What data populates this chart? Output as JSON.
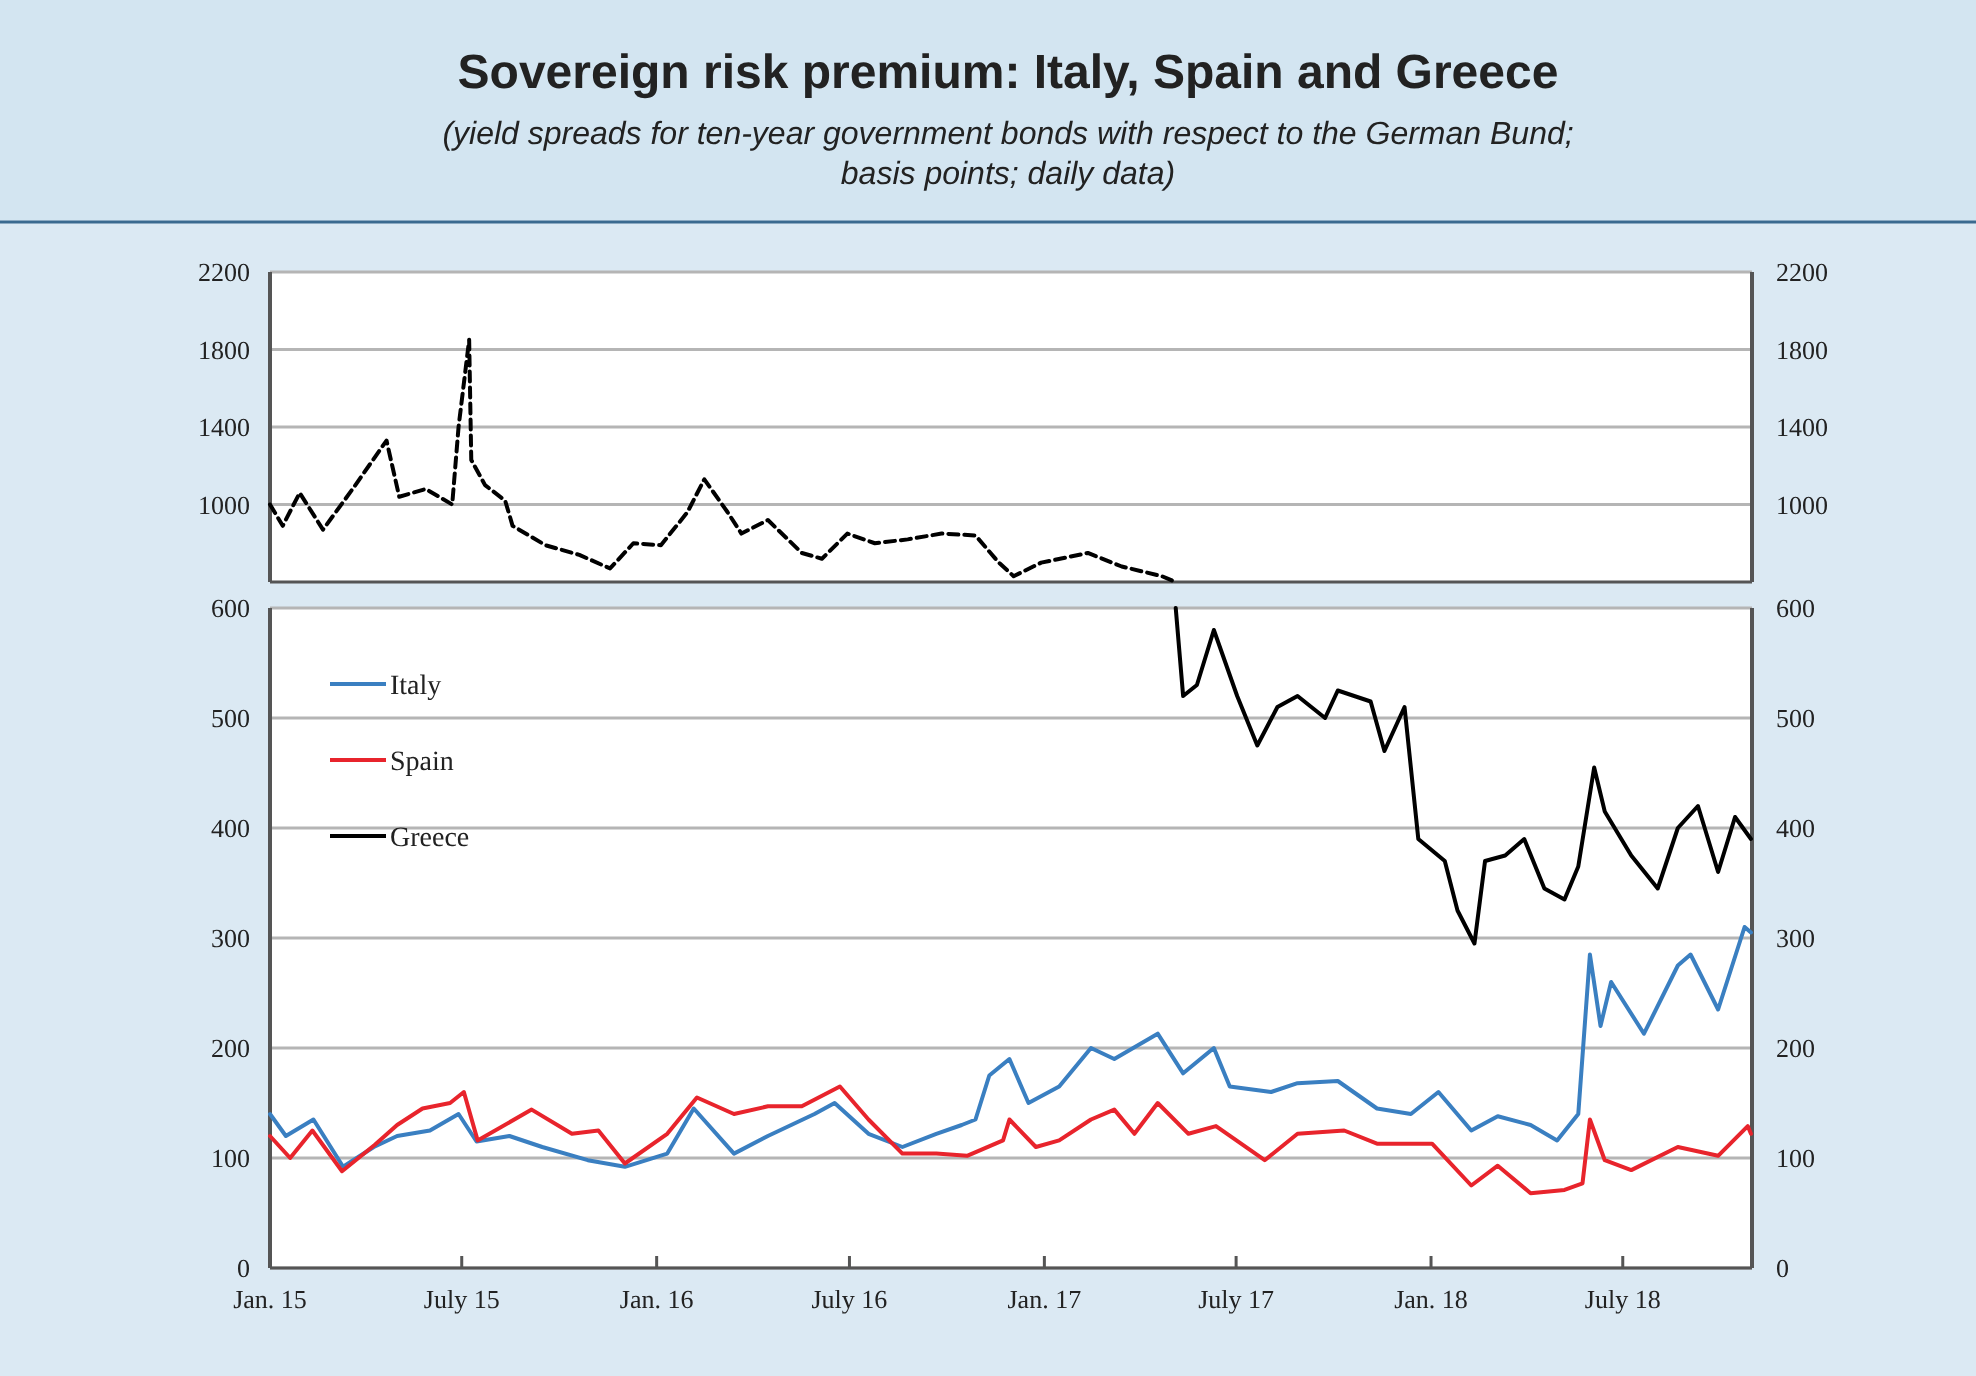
{
  "chart_data": [
    {
      "type": "line",
      "title": "Sovereign risk premium: Italy, Spain and Greece",
      "subtitle": "(yield spreads for ten-year government bonds with respect to the German Bund; basis points; daily data)",
      "xlim": [
        "2015-01-01",
        "2018-10-31"
      ],
      "ylim": [
        600,
        2200
      ],
      "yticks": [
        1000,
        1400,
        1800,
        2200
      ],
      "y2lim": [
        600,
        2200
      ],
      "y2ticks": [
        1000,
        1400,
        1800,
        2200
      ],
      "grid": "y",
      "tick_labels": "y",
      "line_style": "dashed",
      "series": [
        {
          "color": "#000000",
          "x": [
            "2015-01-01",
            "2015-01-13",
            "2015-01-29",
            "2015-02-20",
            "2015-03-20",
            "2015-04-21",
            "2015-05-03",
            "2015-05-28",
            "2015-06-22",
            "2015-06-28",
            "2015-07-08",
            "2015-07-10",
            "2015-07-23",
            "2015-08-11",
            "2015-08-18",
            "2015-09-18",
            "2015-10-20",
            "2015-11-18",
            "2015-12-10",
            "2016-01-05",
            "2016-01-30",
            "2016-02-15",
            "2016-03-08",
            "2016-03-21",
            "2016-04-15",
            "2016-05-17",
            "2016-06-05",
            "2016-06-29",
            "2016-07-25",
            "2016-08-25",
            "2016-09-26",
            "2016-10-28",
            "2016-11-19",
            "2016-12-03",
            "2016-12-29",
            "2017-02-11",
            "2017-03-15",
            "2017-04-22",
            "2017-05-05"
          ],
          "values": [
            1000,
            890,
            1060,
            870,
            1080,
            1330,
            1040,
            1080,
            1000,
            1400,
            1850,
            1230,
            1100,
            1020,
            890,
            790,
            740,
            670,
            800,
            790,
            960,
            1130,
            960,
            850,
            920,
            750,
            720,
            850,
            800,
            820,
            850,
            840,
            700,
            630,
            700,
            750,
            680,
            630,
            600
          ]
        }
      ]
    },
    {
      "type": "line",
      "xlim": [
        "2015-01-01",
        "2018-10-31"
      ],
      "xticks": [
        {
          "value": "2015-01-01",
          "label": "Jan. 15"
        },
        {
          "value": "2015-07-01",
          "label": "July 15"
        },
        {
          "value": "2016-01-01",
          "label": "Jan. 16"
        },
        {
          "value": "2016-07-01",
          "label": "July 16"
        },
        {
          "value": "2017-01-01",
          "label": "Jan. 17"
        },
        {
          "value": "2017-07-01",
          "label": "July 17"
        },
        {
          "value": "2018-01-01",
          "label": "Jan. 18"
        },
        {
          "value": "2018-07-01",
          "label": "July 18"
        }
      ],
      "ylim": [
        0,
        600
      ],
      "yticks": [
        0,
        100,
        200,
        300,
        400,
        500,
        600
      ],
      "y2lim": [
        0,
        600
      ],
      "y2ticks": [
        0,
        100,
        200,
        300,
        400,
        500,
        600
      ],
      "grid": "y",
      "legend": "top left",
      "series": [
        {
          "name": "Italy",
          "color": "#3a7fc1",
          "x": [
            "2015-01-01",
            "2015-01-16",
            "2015-02-11",
            "2015-03-11",
            "2015-04-09",
            "2015-05-01",
            "2015-06-01",
            "2015-06-28",
            "2015-07-15",
            "2015-08-15",
            "2015-09-15",
            "2015-10-28",
            "2015-12-02",
            "2016-01-11",
            "2016-02-05",
            "2016-03-14",
            "2016-04-15",
            "2016-05-29",
            "2016-06-17",
            "2016-07-19",
            "2016-08-20",
            "2016-09-21",
            "2016-10-15",
            "2016-10-28",
            "2016-11-10",
            "2016-11-29",
            "2016-12-17",
            "2017-01-15",
            "2017-02-14",
            "2017-03-08",
            "2017-04-18",
            "2017-05-12",
            "2017-06-10",
            "2017-06-25",
            "2017-08-03",
            "2017-08-28",
            "2017-10-05",
            "2017-11-11",
            "2017-12-13",
            "2018-01-08",
            "2018-02-08",
            "2018-03-05",
            "2018-04-05",
            "2018-04-30",
            "2018-05-20",
            "2018-05-31",
            "2018-06-10",
            "2018-06-20",
            "2018-07-21",
            "2018-08-22",
            "2018-09-03",
            "2018-09-29",
            "2018-10-24",
            "2018-10-30"
          ],
          "values": [
            140,
            120,
            135,
            92,
            110,
            120,
            125,
            140,
            115,
            120,
            110,
            98,
            92,
            104,
            145,
            104,
            120,
            140,
            150,
            122,
            110,
            122,
            130,
            135,
            175,
            190,
            150,
            165,
            200,
            190,
            213,
            177,
            200,
            165,
            160,
            168,
            170,
            145,
            140,
            160,
            125,
            138,
            130,
            116,
            140,
            285,
            220,
            260,
            213,
            275,
            285,
            235,
            310,
            305
          ]
        },
        {
          "name": "Spain",
          "color": "#e8242c",
          "x": [
            "2015-01-01",
            "2015-01-20",
            "2015-02-10",
            "2015-03-10",
            "2015-04-10",
            "2015-05-01",
            "2015-05-25",
            "2015-06-20",
            "2015-07-03",
            "2015-07-16",
            "2015-09-05",
            "2015-10-13",
            "2015-11-07",
            "2015-12-02",
            "2016-01-11",
            "2016-02-08",
            "2016-03-14",
            "2016-04-15",
            "2016-05-17",
            "2016-06-22",
            "2016-07-19",
            "2016-08-20",
            "2016-09-21",
            "2016-10-20",
            "2016-11-23",
            "2016-11-29",
            "2016-12-24",
            "2017-01-15",
            "2017-02-14",
            "2017-03-08",
            "2017-03-27",
            "2017-04-18",
            "2017-05-17",
            "2017-06-12",
            "2017-07-28",
            "2017-08-28",
            "2017-10-11",
            "2017-11-11",
            "2018-01-02",
            "2018-02-08",
            "2018-03-05",
            "2018-04-05",
            "2018-05-07",
            "2018-05-24",
            "2018-05-31",
            "2018-06-14",
            "2018-07-09",
            "2018-08-22",
            "2018-09-29",
            "2018-10-27",
            "2018-10-30"
          ],
          "values": [
            120,
            100,
            125,
            88,
            112,
            130,
            145,
            150,
            160,
            116,
            144,
            122,
            125,
            95,
            122,
            155,
            140,
            147,
            147,
            165,
            135,
            104,
            104,
            102,
            116,
            135,
            110,
            116,
            135,
            144,
            122,
            150,
            122,
            129,
            98,
            122,
            125,
            113,
            113,
            75,
            93,
            68,
            71,
            77,
            135,
            98,
            89,
            110,
            102,
            129,
            122
          ]
        },
        {
          "name": "Greece",
          "color": "#000000",
          "x": [
            "2017-05-05",
            "2017-05-12",
            "2017-05-25",
            "2017-06-10",
            "2017-07-02",
            "2017-07-21",
            "2017-08-09",
            "2017-08-28",
            "2017-09-23",
            "2017-10-05",
            "2017-11-05",
            "2017-11-18",
            "2017-12-07",
            "2017-12-20",
            "2018-01-14",
            "2018-01-26",
            "2018-02-11",
            "2018-02-21",
            "2018-03-12",
            "2018-03-30",
            "2018-04-18",
            "2018-05-07",
            "2018-05-20",
            "2018-06-04",
            "2018-06-14",
            "2018-07-09",
            "2018-08-03",
            "2018-08-22",
            "2018-09-10",
            "2018-09-29",
            "2018-10-15",
            "2018-10-30"
          ],
          "values": [
            600,
            520,
            530,
            580,
            520,
            475,
            510,
            520,
            500,
            525,
            515,
            470,
            510,
            390,
            370,
            325,
            295,
            370,
            375,
            390,
            345,
            335,
            365,
            455,
            415,
            375,
            345,
            400,
            420,
            360,
            410,
            390
          ]
        }
      ]
    }
  ]
}
